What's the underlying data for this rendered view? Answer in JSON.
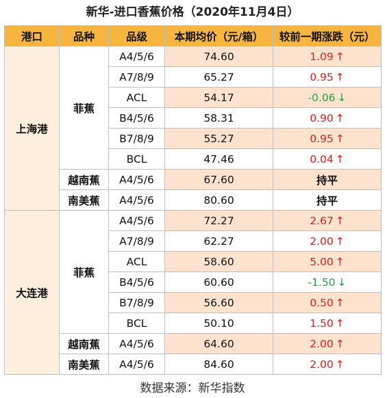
{
  "title": "新华-进口香蕉价格（2020年11月4日）",
  "headers": [
    "港口",
    "品种",
    "品级",
    "本期均价（元/箱）",
    "较前一期涨跌（元）"
  ],
  "ports": [
    {
      "port": "上海港",
      "varieties": [
        {
          "variety": "菲蕉",
          "rows": [
            {
              "grade": "A4/5/6",
              "price": "74.60",
              "change": "1.09",
              "dir": "up"
            },
            {
              "grade": "A7/8/9",
              "price": "65.27",
              "change": "0.95",
              "dir": "up"
            },
            {
              "grade": "ACL",
              "price": "54.17",
              "change": "-0.06",
              "dir": "down"
            },
            {
              "grade": "B4/5/6",
              "price": "58.31",
              "change": "0.90",
              "dir": "up"
            },
            {
              "grade": "B7/8/9",
              "price": "55.27",
              "change": "0.95",
              "dir": "up"
            },
            {
              "grade": "BCL",
              "price": "47.46",
              "change": "0.04",
              "dir": "up"
            }
          ]
        },
        {
          "variety": "越南蕉",
          "rows": [
            {
              "grade": "A4/5/6",
              "price": "67.60",
              "change": "持平",
              "dir": "flat"
            }
          ]
        },
        {
          "variety": "南美蕉",
          "rows": [
            {
              "grade": "A4/5/6",
              "price": "80.60",
              "change": "持平",
              "dir": "flat"
            }
          ]
        }
      ]
    },
    {
      "port": "大连港",
      "varieties": [
        {
          "variety": "菲蕉",
          "rows": [
            {
              "grade": "A4/5/6",
              "price": "72.27",
              "change": "2.67",
              "dir": "up"
            },
            {
              "grade": "A7/8/9",
              "price": "62.27",
              "change": "2.00",
              "dir": "up"
            },
            {
              "grade": "ACL",
              "price": "58.60",
              "change": "5.00",
              "dir": "up"
            },
            {
              "grade": "B4/5/6",
              "price": "60.60",
              "change": "-1.50",
              "dir": "down"
            },
            {
              "grade": "B7/8/9",
              "price": "56.60",
              "change": "0.50",
              "dir": "up"
            },
            {
              "grade": "BCL",
              "price": "50.10",
              "change": "1.50",
              "dir": "up"
            }
          ]
        },
        {
          "variety": "越南蕉",
          "rows": [
            {
              "grade": "A4/5/6",
              "price": "64.60",
              "change": "2.00",
              "dir": "up"
            }
          ]
        },
        {
          "variety": "南美蕉",
          "rows": [
            {
              "grade": "A4/5/6",
              "price": "84.60",
              "change": "2.00",
              "dir": "up"
            }
          ]
        }
      ]
    }
  ],
  "arrows": {
    "up": "↑",
    "down": "↓"
  },
  "colors": {
    "header_bg": "#f5b53f",
    "up": "#e02020",
    "down": "#1aa14a",
    "row_tint": "#fde3cd"
  },
  "footer": "数据来源：新华指数"
}
